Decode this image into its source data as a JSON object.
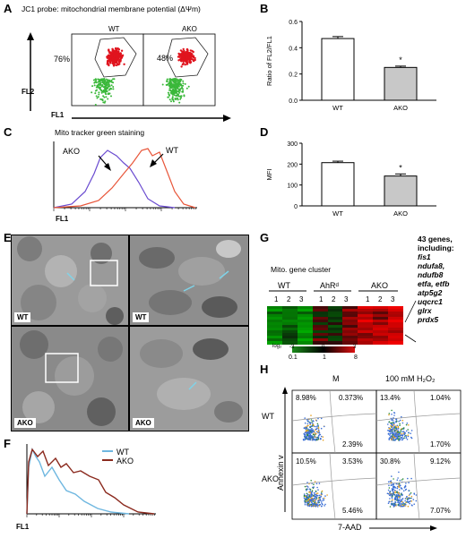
{
  "panels": {
    "A": "A",
    "B": "B",
    "C": "C",
    "D": "D",
    "E": "E",
    "F": "F",
    "G": "G",
    "H": "H"
  },
  "panelA": {
    "title": "JC1 probe: mitochondrial membrane potential (ΔΨm)",
    "wt_label": "WT",
    "ako_label": "AKO",
    "wt_pct": "76%",
    "ako_pct": "48%",
    "yaxis": "FL2",
    "xaxis": "FL1"
  },
  "panelC": {
    "title": "Mito tracker green staining",
    "ako_label": "AKO",
    "wt_label": "WT",
    "xaxis": "FL1"
  },
  "panelF": {
    "legend_wt": "WT",
    "legend_ako": "AKO",
    "xaxis": "FL1",
    "colors": {
      "wt": "#6fb7e0",
      "ako": "#8b2a1e"
    }
  },
  "panelE": {
    "labels": [
      "WT",
      "WT",
      "AKO",
      "AKO"
    ]
  },
  "panelG": {
    "title": "Mito. gene cluster",
    "groups": [
      "WT",
      "AhRᵈ",
      "AKO"
    ],
    "reps": [
      "1",
      "2",
      "3"
    ],
    "scale_label": "log₂",
    "scale_ticks_top": [
      "-3",
      "0",
      "3"
    ],
    "scale_ticks_bottom": [
      "0.1",
      "1",
      "8"
    ],
    "genes_title": "43 genes, including:",
    "genes": [
      "fis1",
      "ndufa8, ndufb8",
      "etfa, etfb",
      "atp5g2",
      "uqcrc1",
      "glrx",
      "prdx5"
    ]
  },
  "panelH": {
    "col_titles": [
      "M",
      "100 mM H₂O₂"
    ],
    "row_titles": [
      "WT",
      "AKO"
    ],
    "yaxis": "Annexin v",
    "xaxis": "7-AAD",
    "quadrants": [
      [
        "8.98%",
        "0.373%",
        "2.39%"
      ],
      [
        "13.4%",
        "1.04%",
        "1.70%"
      ],
      [
        "10.5%",
        "3.53%",
        "5.46%"
      ],
      [
        "30.8%",
        "9.12%",
        "7.07%"
      ]
    ]
  },
  "chart_data": [
    {
      "type": "bar",
      "panel": "B",
      "categories": [
        "WT",
        "AKO"
      ],
      "values": [
        0.47,
        0.25
      ],
      "errors": [
        0.015,
        0.01
      ],
      "ylabel": "Ratio of FL2/FL1",
      "ylim": [
        0,
        0.6
      ],
      "yticks": [
        "0.0",
        "0.2",
        "0.4",
        "0.6"
      ],
      "colors": [
        "#ffffff",
        "#c8c8c8"
      ],
      "annotation": "*"
    },
    {
      "type": "bar",
      "panel": "D",
      "categories": [
        "WT",
        "AKO"
      ],
      "values": [
        207,
        143
      ],
      "errors": [
        7,
        10
      ],
      "ylabel": "MFI",
      "ylim": [
        0,
        300
      ],
      "yticks": [
        "0",
        "100",
        "200",
        "300"
      ],
      "colors": [
        "#ffffff",
        "#c8c8c8"
      ],
      "annotation": "*"
    }
  ]
}
